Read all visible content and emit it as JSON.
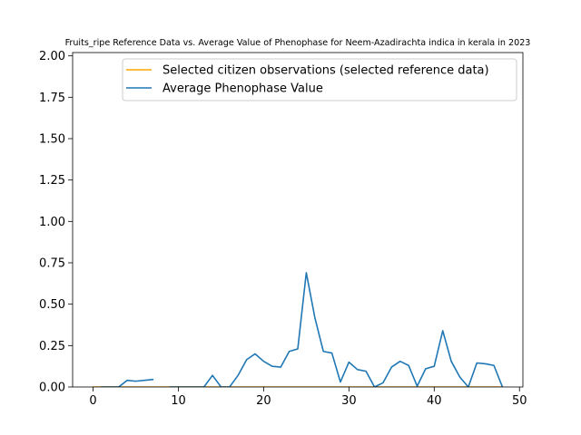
{
  "chart_data": {
    "type": "line",
    "title": "Fruits_ripe Reference Data vs. Average Value of Phenophase for Neem-Azadirachta indica in kerala in 2023",
    "xlabel": "",
    "ylabel": "",
    "xlim": [
      -2.4,
      50.4
    ],
    "ylim": [
      0,
      2.02
    ],
    "xticks": [
      0,
      10,
      20,
      30,
      40,
      50
    ],
    "yticks": [
      0.0,
      0.25,
      0.5,
      0.75,
      1.0,
      1.25,
      1.5,
      1.75,
      2.0
    ],
    "xtick_labels": [
      "0",
      "10",
      "20",
      "30",
      "40",
      "50"
    ],
    "ytick_labels": [
      "0.00",
      "0.25",
      "0.50",
      "0.75",
      "1.00",
      "1.25",
      "1.50",
      "1.75",
      "2.00"
    ],
    "grid": false,
    "legend_position": "top-right",
    "series": [
      {
        "name": "Selected citizen observations (selected reference data)",
        "color": "#ffa500",
        "x": [
          0,
          48
        ],
        "y": [
          0,
          0
        ]
      },
      {
        "name": "Average Phenophase Value",
        "color": "#1f77b4",
        "x": [
          0,
          1,
          2,
          3,
          4,
          5,
          6,
          7,
          8,
          9,
          10,
          11,
          12,
          13,
          14,
          15,
          16,
          17,
          18,
          19,
          20,
          21,
          22,
          23,
          24,
          25,
          26,
          27,
          28,
          29,
          30,
          31,
          32,
          33,
          34,
          35,
          36,
          37,
          38,
          39,
          40,
          41,
          42,
          43,
          44,
          45,
          46,
          47,
          48
        ],
        "y": [
          null,
          0.0,
          0.0,
          0.0,
          0.04,
          0.035,
          0.04,
          0.045,
          null,
          0.0,
          0.0,
          0.0,
          0.0,
          0.0,
          0.07,
          0.0,
          0.0,
          0.07,
          0.165,
          0.2,
          0.155,
          0.125,
          0.12,
          0.215,
          0.23,
          0.69,
          0.42,
          0.215,
          0.205,
          0.03,
          0.15,
          0.105,
          0.095,
          0.0,
          0.025,
          0.12,
          0.155,
          0.13,
          0.005,
          0.11,
          0.125,
          0.34,
          0.155,
          0.06,
          0.0,
          0.145,
          0.14,
          0.13,
          0.0
        ]
      }
    ]
  }
}
